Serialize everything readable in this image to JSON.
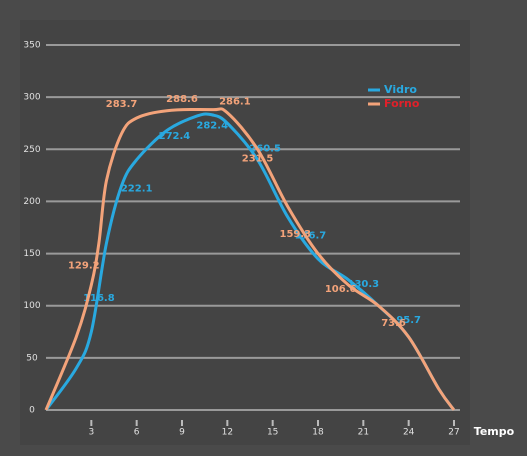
{
  "chart_data": {
    "type": "line",
    "x_label": "Tempo",
    "xlim": [
      0,
      27
    ],
    "xticks": [
      3,
      6,
      9,
      12,
      15,
      18,
      21,
      24,
      27
    ],
    "ylim": [
      0,
      350
    ],
    "yticks": [
      0,
      50,
      100,
      150,
      200,
      250,
      300,
      350
    ],
    "grid": true,
    "legend": "upper right",
    "series": [
      {
        "name": "Vidro",
        "color": "#29a9e0",
        "label_color": "#29a9e0",
        "x": [
          0,
          2,
          3,
          4,
          5,
          6,
          8,
          10,
          11,
          12,
          14,
          16,
          18,
          20,
          22,
          24,
          26,
          27
        ],
        "values": [
          0,
          40,
          75,
          160,
          215,
          240,
          268,
          282,
          283,
          275,
          240,
          185,
          145,
          125,
          100,
          70,
          20,
          0
        ],
        "annotations": [
          {
            "x": 3.5,
            "value": 116.8
          },
          {
            "x": 6,
            "value": 222.1
          },
          {
            "x": 8.5,
            "value": 272.4
          },
          {
            "x": 11,
            "value": 282.4
          },
          {
            "x": 14.5,
            "value": 260.5
          },
          {
            "x": 17.5,
            "value": 176.7
          },
          {
            "x": 21,
            "value": 130.3
          },
          {
            "x": 24,
            "value": 95.7
          }
        ]
      },
      {
        "name": "Forno",
        "color": "#f3a37a",
        "label_color": "#e0202a",
        "x": [
          0,
          2,
          3,
          3.5,
          4,
          5,
          6,
          8,
          11,
          12,
          14,
          16,
          18,
          20,
          22,
          24,
          26,
          27
        ],
        "values": [
          0,
          70,
          120,
          160,
          220,
          265,
          280,
          287,
          288,
          285,
          250,
          195,
          150,
          120,
          100,
          70,
          20,
          0
        ],
        "annotations": [
          {
            "x": 2.5,
            "value": 129.2
          },
          {
            "x": 5,
            "value": 283.7
          },
          {
            "x": 9,
            "value": 288.6
          },
          {
            "x": 12.5,
            "value": 286.1
          },
          {
            "x": 14,
            "value": 231.5
          },
          {
            "x": 16.5,
            "value": 159.3
          },
          {
            "x": 19.5,
            "value": 106.6
          },
          {
            "x": 23,
            "value": 73.6
          }
        ]
      }
    ]
  }
}
